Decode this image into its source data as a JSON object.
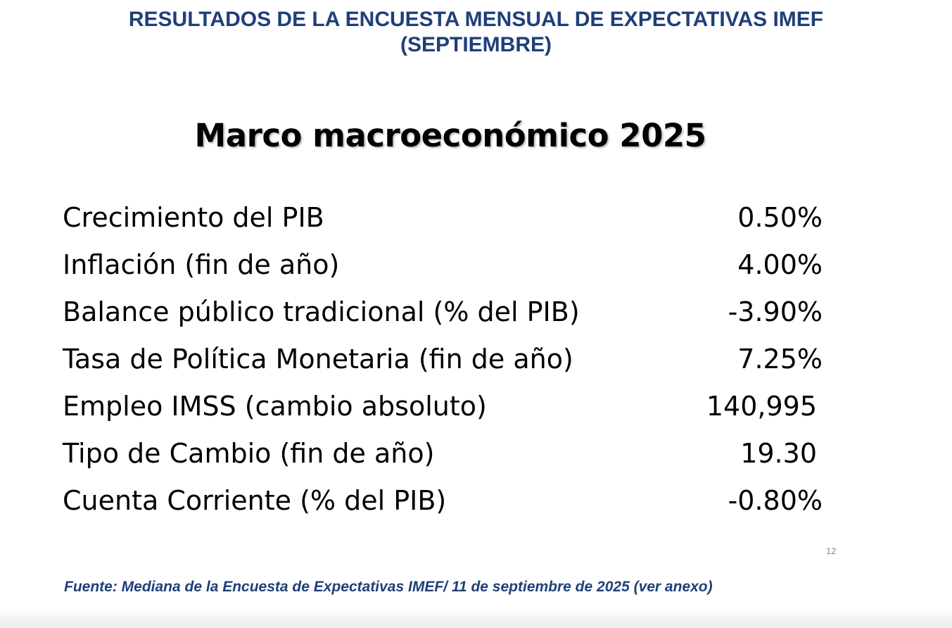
{
  "header": {
    "title_line1": "RESULTADOS DE LA ENCUESTA MENSUAL DE EXPECTATIVAS IMEF",
    "title_line2": "(SEPTIEMBRE)"
  },
  "slide": {
    "title": "Marco macroeconómico 2025",
    "rows": [
      {
        "label": "Crecimiento del PIB",
        "value": "0.50%"
      },
      {
        "label": "Inflación (fin de año)",
        "value": "4.00%"
      },
      {
        "label": "Balance público tradicional (% del PIB)",
        "value": "-3.90%"
      },
      {
        "label": "Tasa de Política Monetaria (fin de año)",
        "value": "7.25%"
      },
      {
        "label": "Empleo IMSS (cambio absoluto)",
        "value": "140,995"
      },
      {
        "label": "Tipo de Cambio (fin de año)",
        "value": "19.30"
      },
      {
        "label": "Cuenta Corriente (% del PIB)",
        "value": "-0.80%"
      }
    ],
    "page_number": "12"
  },
  "footer": {
    "source": "Fuente: Mediana de la Encuesta de Expectativas IMEF/ 11 de septiembre de 2025 (ver anexo)"
  }
}
